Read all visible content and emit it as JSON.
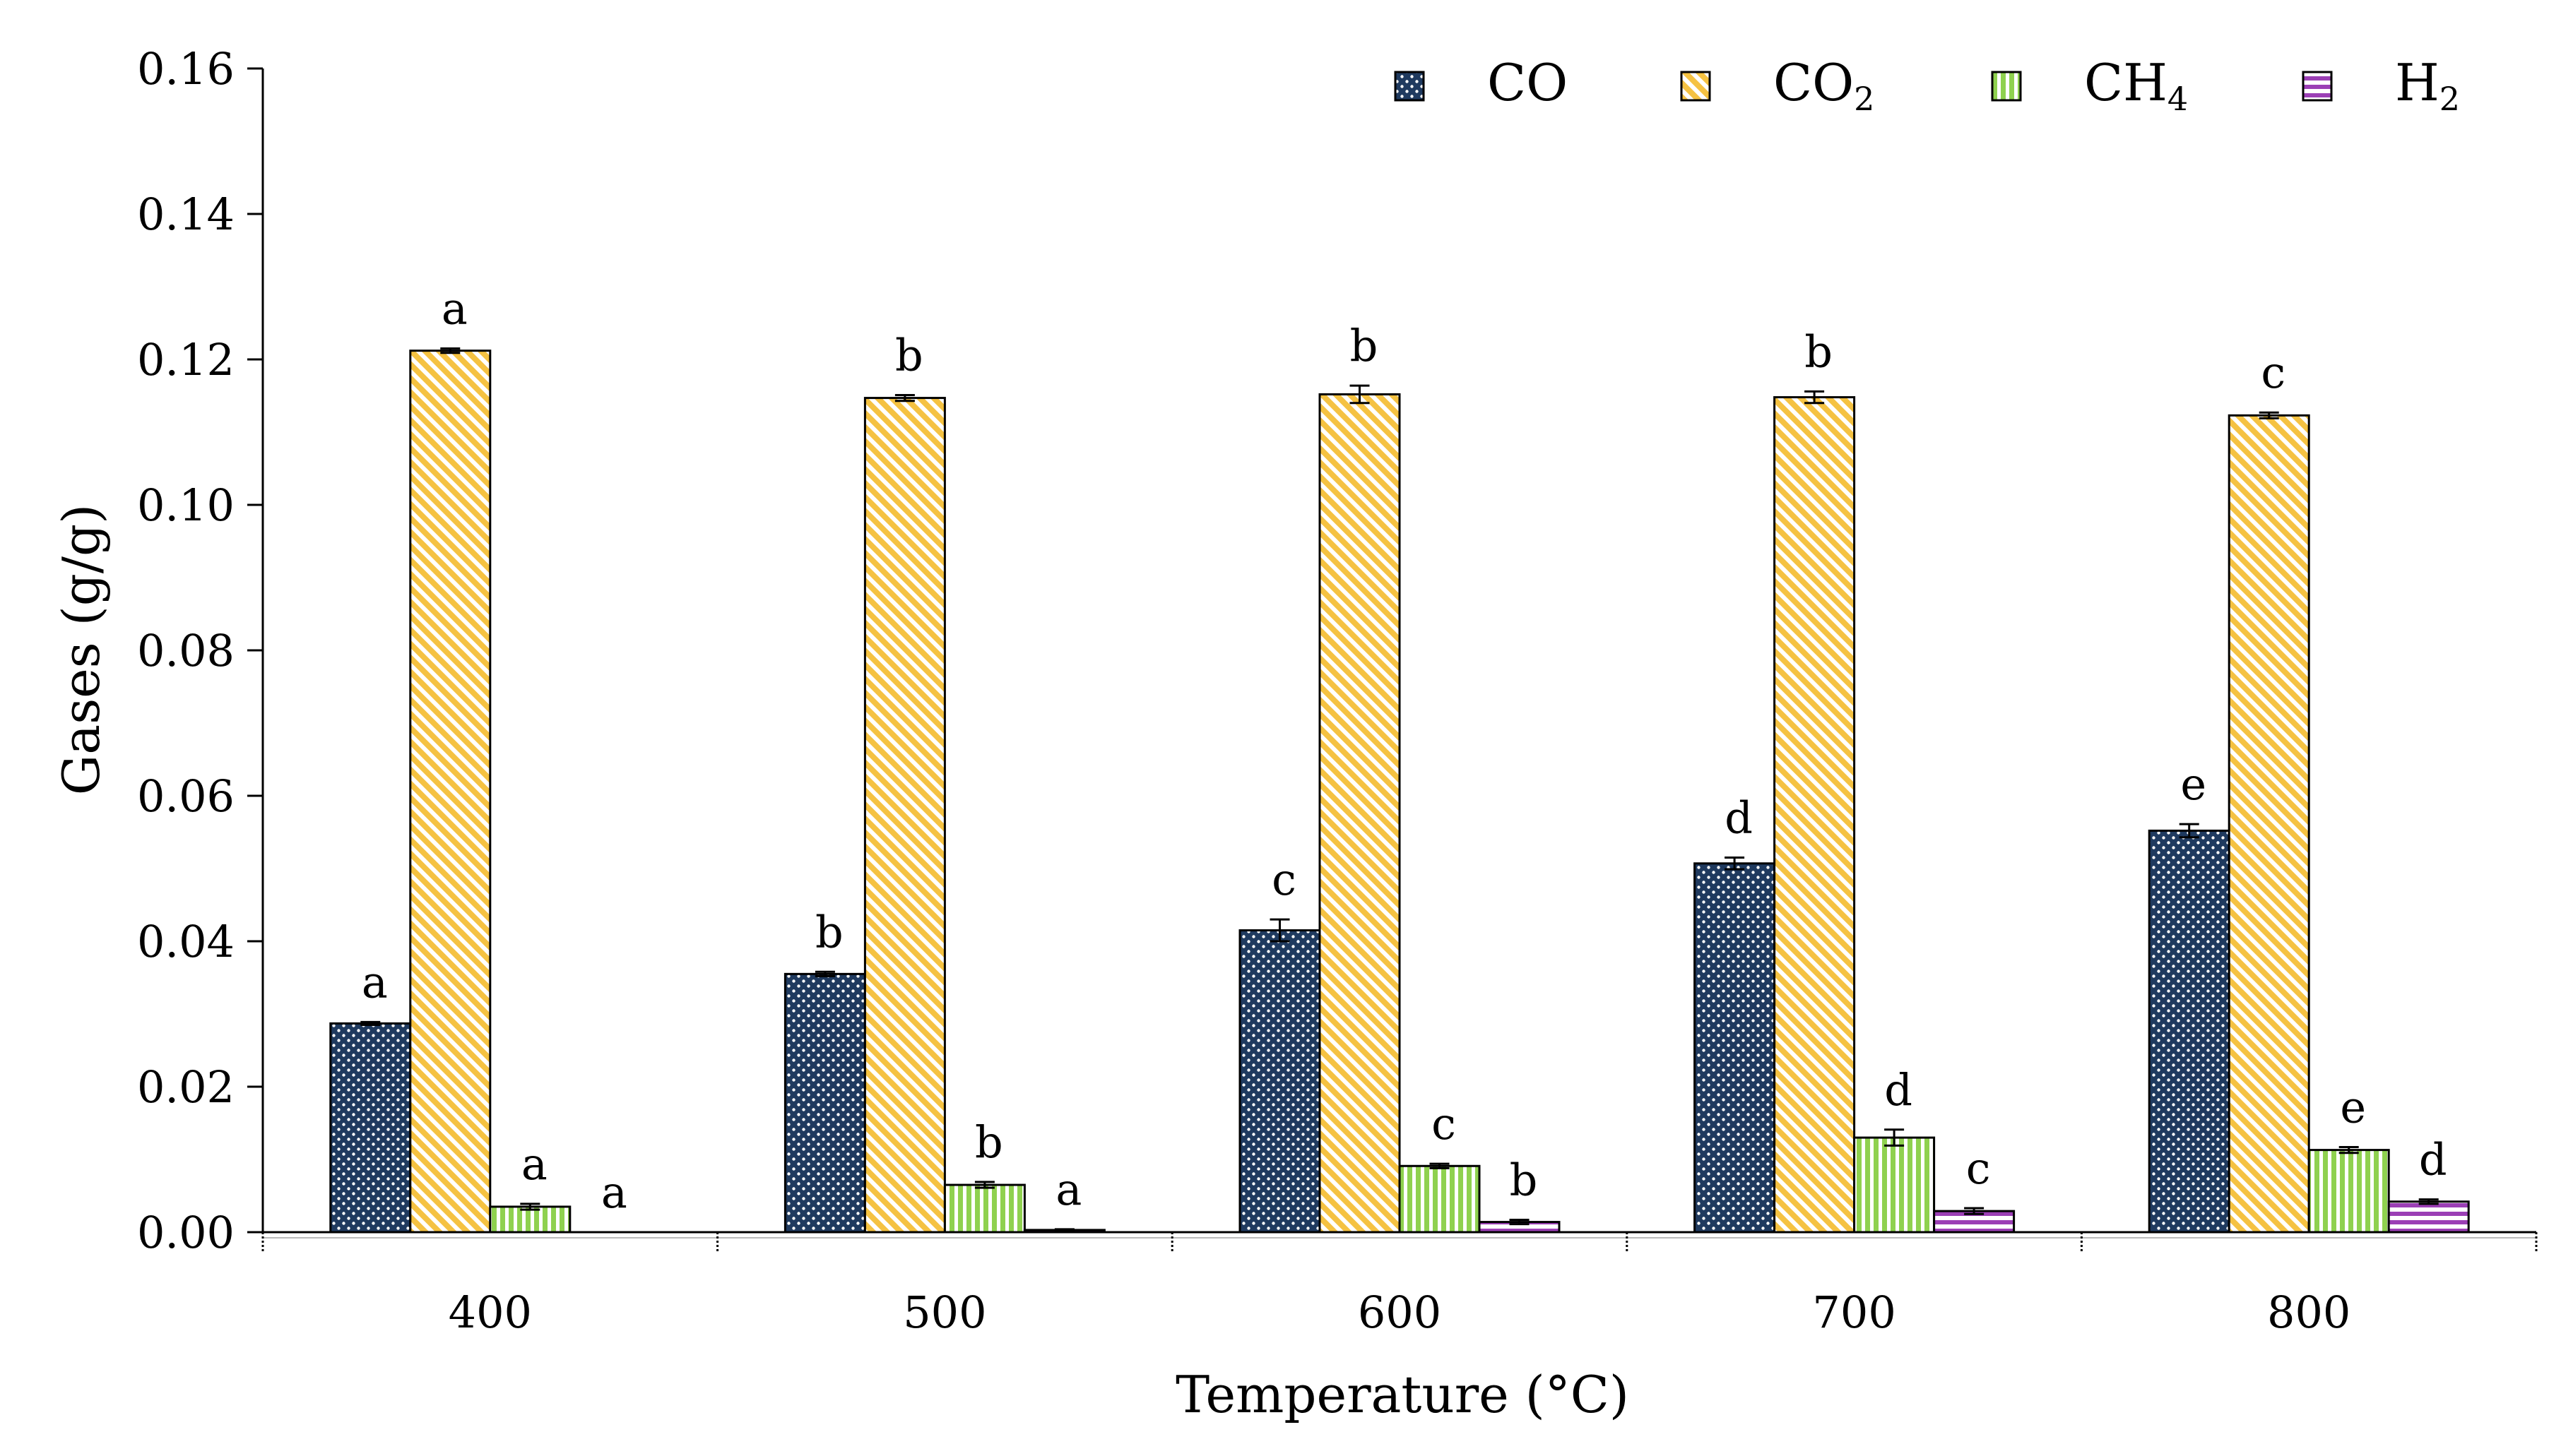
{
  "chart_data": {
    "type": "bar",
    "title": "",
    "xlabel": "Temperature (°C)",
    "ylabel": "Gases (g/g)",
    "ylim": [
      0,
      0.16
    ],
    "yticks": [
      0.0,
      0.02,
      0.04,
      0.06,
      0.08,
      0.1,
      0.12,
      0.14,
      0.16
    ],
    "ytick_labels": [
      "0.00",
      "0.02",
      "0.04",
      "0.06",
      "0.08",
      "0.10",
      "0.12",
      "0.14",
      "0.16"
    ],
    "categories": [
      "400",
      "500",
      "600",
      "700",
      "800"
    ],
    "legend_position": "top-right",
    "grid": false,
    "series": [
      {
        "name": "CO",
        "legend_label": "CO",
        "color": "#1f3a5f",
        "dot_color": "#ffffff",
        "pattern": "dots",
        "values": [
          0.0287,
          0.0355,
          0.0415,
          0.0507,
          0.0552
        ],
        "errors": [
          0.0002,
          0.0003,
          0.0015,
          0.0008,
          0.0009
        ],
        "letters": [
          "a",
          "b",
          "c",
          "d",
          "e"
        ]
      },
      {
        "name": "CO2",
        "legend_label": "CO",
        "legend_subscript": "2",
        "color": "#f5c242",
        "pattern": "diagonal",
        "values": [
          0.1212,
          0.1147,
          0.1152,
          0.1148,
          0.1123
        ],
        "errors": [
          0.0003,
          0.0004,
          0.0012,
          0.0008,
          0.0004
        ],
        "letters": [
          "a",
          "b",
          "b",
          "b",
          "c"
        ]
      },
      {
        "name": "CH4",
        "legend_label": "CH",
        "legend_subscript": "4",
        "color": "#8fd14f",
        "pattern": "vertical",
        "values": [
          0.0035,
          0.0065,
          0.0091,
          0.013,
          0.0113
        ],
        "errors": [
          0.0004,
          0.0004,
          0.0003,
          0.0011,
          0.0004
        ],
        "letters": [
          "a",
          "b",
          "c",
          "d",
          "e"
        ]
      },
      {
        "name": "H2",
        "legend_label": "H",
        "legend_subscript": "2",
        "color": "#9b3fb5",
        "pattern": "horizontal",
        "values": [
          0.0,
          0.0003,
          0.0014,
          0.0029,
          0.0042
        ],
        "errors": [
          0.0,
          0.0001,
          0.0003,
          0.0004,
          0.0003
        ],
        "letters": [
          "a",
          "a",
          "b",
          "c",
          "d"
        ]
      }
    ]
  }
}
